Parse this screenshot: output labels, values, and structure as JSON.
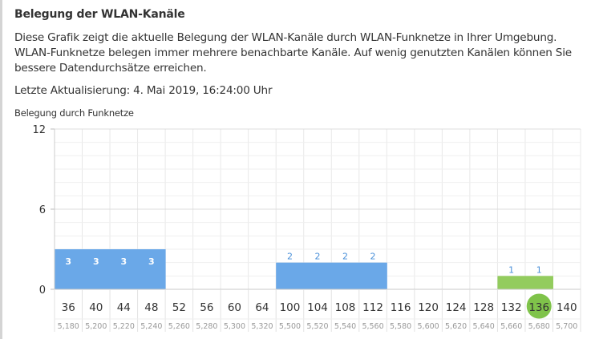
{
  "header": {
    "title": "Belegung der WLAN-Kanäle",
    "description": "Diese Grafik zeigt die aktuelle Belegung der WLAN-Kanäle durch WLAN-Funknetze in Ihrer Umgebung. WLAN-Funknetze belegen immer mehrere benachbarte Kanäle. Auf wenig genutzten Kanälen können Sie bessere Datendurchsätze erreichen.",
    "last_update": "Letzte Aktualisierung: 4. Mai 2019, 16:24:00 Uhr"
  },
  "chart_data": {
    "type": "bar",
    "caption": "Belegung durch Funknetze",
    "ylim": [
      0,
      12
    ],
    "yticks": [
      0,
      6,
      12
    ],
    "grid": true,
    "categories": [
      "36",
      "40",
      "44",
      "48",
      "52",
      "56",
      "60",
      "64",
      "100",
      "104",
      "108",
      "112",
      "116",
      "120",
      "124",
      "128",
      "132",
      "136",
      "140"
    ],
    "frequencies": [
      "5,180",
      "5,200",
      "5,220",
      "5,240",
      "5,260",
      "5,280",
      "5,300",
      "5,320",
      "5,500",
      "5,520",
      "5,540",
      "5,560",
      "5,580",
      "5,600",
      "5,620",
      "5,640",
      "5,660",
      "5,680",
      "5,700"
    ],
    "values": [
      3,
      3,
      3,
      3,
      0,
      0,
      0,
      0,
      2,
      2,
      2,
      2,
      0,
      0,
      0,
      0,
      1,
      1,
      0
    ],
    "bar_colors": [
      "#6aa8e8",
      "#6aa8e8",
      "#6aa8e8",
      "#6aa8e8",
      null,
      null,
      null,
      null,
      "#6aa8e8",
      "#6aa8e8",
      "#6aa8e8",
      "#6aa8e8",
      null,
      null,
      null,
      null,
      "#93cc5e",
      "#93cc5e",
      null
    ],
    "label_style": [
      "inside",
      "inside",
      "inside",
      "inside",
      null,
      null,
      null,
      null,
      "above",
      "above",
      "above",
      "above",
      null,
      null,
      null,
      null,
      "above",
      "above",
      null
    ],
    "current_channel": "136",
    "colors": {
      "blue": "#6aa8e8",
      "green": "#93cc5e",
      "highlight": "#7fc34a",
      "above_label": "#4a90d9"
    }
  }
}
